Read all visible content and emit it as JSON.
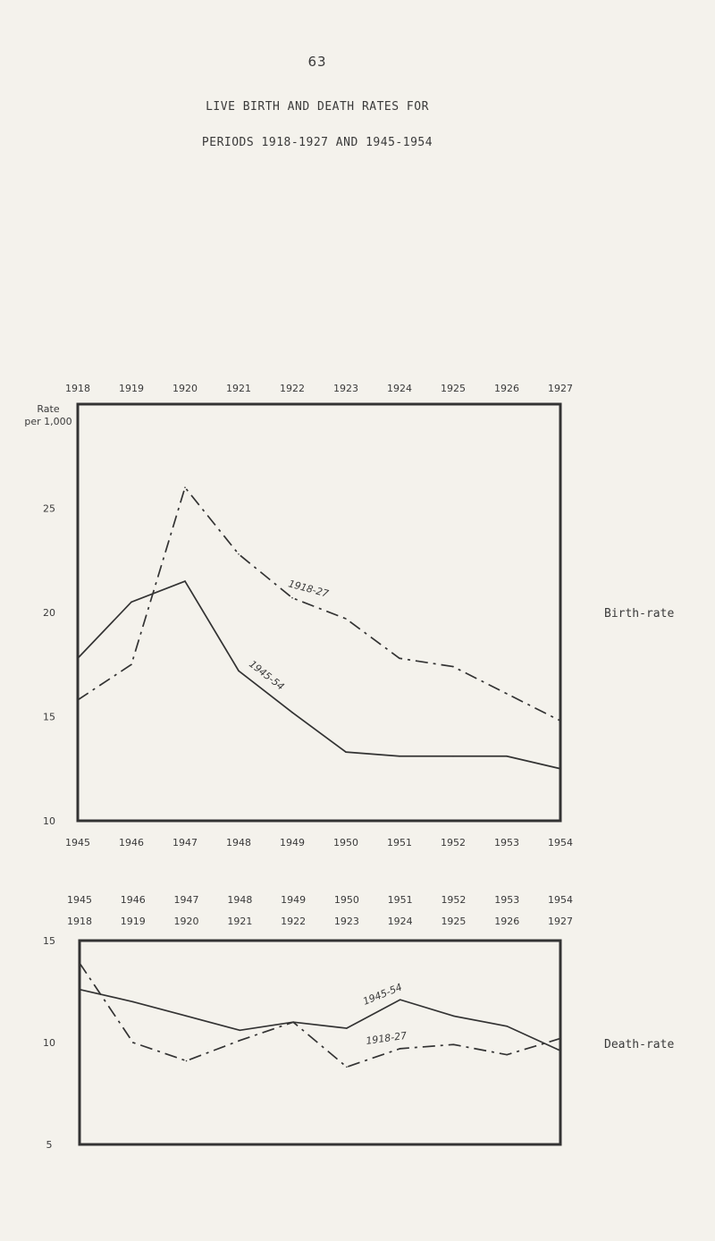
{
  "page": {
    "number": "63",
    "title_line1": "LIVE BIRTH AND DEATH RATES FOR",
    "title_line2": "PERIODS 1918-1927 AND 1945-1954"
  },
  "chart_data": [
    {
      "type": "line",
      "side_label": "Birth-rate",
      "ylabel": "Rate per 1,000",
      "ylim": [
        10,
        30
      ],
      "yticks": [
        "10",
        "15",
        "20",
        "25"
      ],
      "top_axis_labels": [
        "1918",
        "1919",
        "1920",
        "1921",
        "1922",
        "1923",
        "1924",
        "1925",
        "1926",
        "1927"
      ],
      "bottom_axis_labels": [
        "1945",
        "1946",
        "1947",
        "1948",
        "1949",
        "1950",
        "1951",
        "1952",
        "1953",
        "1954"
      ],
      "series": [
        {
          "name": "1918-27",
          "style": "dashdot",
          "values": [
            15.8,
            17.5,
            26.0,
            22.8,
            20.7,
            19.7,
            17.8,
            17.4,
            16.1,
            14.8
          ]
        },
        {
          "name": "1945-54",
          "style": "solid",
          "values": [
            17.8,
            20.5,
            21.5,
            17.2,
            15.2,
            13.3,
            13.1,
            13.1,
            13.1,
            12.5
          ]
        }
      ],
      "grid": false
    },
    {
      "type": "line",
      "side_label": "Death-rate",
      "ylabel": "",
      "ylim": [
        5,
        15
      ],
      "yticks": [
        "5",
        "10",
        "15"
      ],
      "top_axis_labels": [
        "1918",
        "1919",
        "1920",
        "1921",
        "1922",
        "1923",
        "1924",
        "1925",
        "1926",
        "1927"
      ],
      "bottom_axis_labels": [
        "1945",
        "1946",
        "1947",
        "1948",
        "1949",
        "1950",
        "1951",
        "1952",
        "1953",
        "1954"
      ],
      "series": [
        {
          "name": "1918-27",
          "style": "dashdot",
          "values": [
            13.9,
            10.0,
            9.1,
            10.1,
            11.0,
            8.8,
            9.7,
            9.9,
            9.4,
            10.2
          ]
        },
        {
          "name": "1945-54",
          "style": "solid",
          "values": [
            12.6,
            12.0,
            11.3,
            10.6,
            11.0,
            10.7,
            12.1,
            11.3,
            10.8,
            9.6
          ]
        }
      ],
      "grid": false
    }
  ]
}
